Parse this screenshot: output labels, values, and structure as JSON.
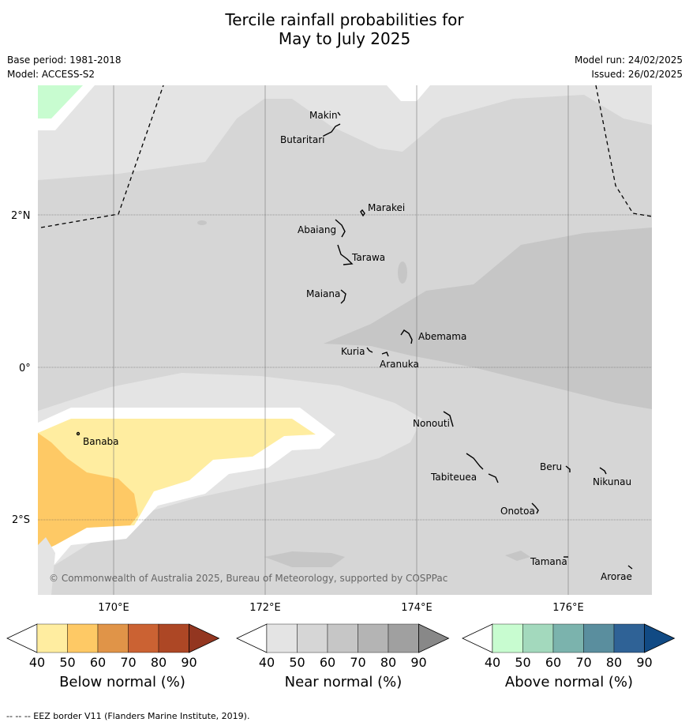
{
  "title_line1": "Tercile rainfall probabilities for",
  "title_line2": "May to July 2025",
  "base_period": "Base period: 1981-2018",
  "model": "Model: ACCESS-S2",
  "model_run": "Model run: 24/02/2025",
  "issued": "Issued: 26/02/2025",
  "copyright": "© Commonwealth of Australia 2025, Bureau of Meteorology, supported by COSPPac",
  "footer": "--  --  -- EEZ border V11 (Flanders Marine Institute, 2019).",
  "lat_labels": [
    "2°N",
    "0°",
    "2°S"
  ],
  "lon_labels": [
    "170°E",
    "172°E",
    "174°E",
    "176°E"
  ],
  "places": [
    {
      "name": "Makin"
    },
    {
      "name": "Butaritari"
    },
    {
      "name": "Marakei"
    },
    {
      "name": "Abaiang"
    },
    {
      "name": "Tarawa"
    },
    {
      "name": "Maiana"
    },
    {
      "name": "Abemama"
    },
    {
      "name": "Kuria"
    },
    {
      "name": "Aranuka"
    },
    {
      "name": "Banaba"
    },
    {
      "name": "Nonouti"
    },
    {
      "name": "Beru"
    },
    {
      "name": "Nikunau"
    },
    {
      "name": "Tabiteuea"
    },
    {
      "name": "Onotoa"
    },
    {
      "name": "Tamana"
    },
    {
      "name": "Arorae"
    }
  ],
  "colorbars": [
    {
      "label": "Below normal (%)",
      "ticks": [
        "40",
        "50",
        "60",
        "70",
        "80",
        "90"
      ],
      "colors": [
        "#ffeda0",
        "#fec965",
        "#e09448",
        "#cb6233",
        "#ad4725",
        "#933620"
      ]
    },
    {
      "label": "Near normal (%)",
      "ticks": [
        "40",
        "50",
        "60",
        "70",
        "80",
        "90"
      ],
      "colors": [
        "#e4e4e4",
        "#d6d6d6",
        "#c6c6c6",
        "#b4b4b4",
        "#a0a0a0",
        "#888888"
      ]
    },
    {
      "label": "Above normal (%)",
      "ticks": [
        "40",
        "50",
        "60",
        "70",
        "80",
        "90"
      ],
      "colors": [
        "#c8fcd0",
        "#a3d9bd",
        "#7bb3ad",
        "#5a8e9e",
        "#2f6296",
        "#114a84"
      ]
    }
  ]
}
